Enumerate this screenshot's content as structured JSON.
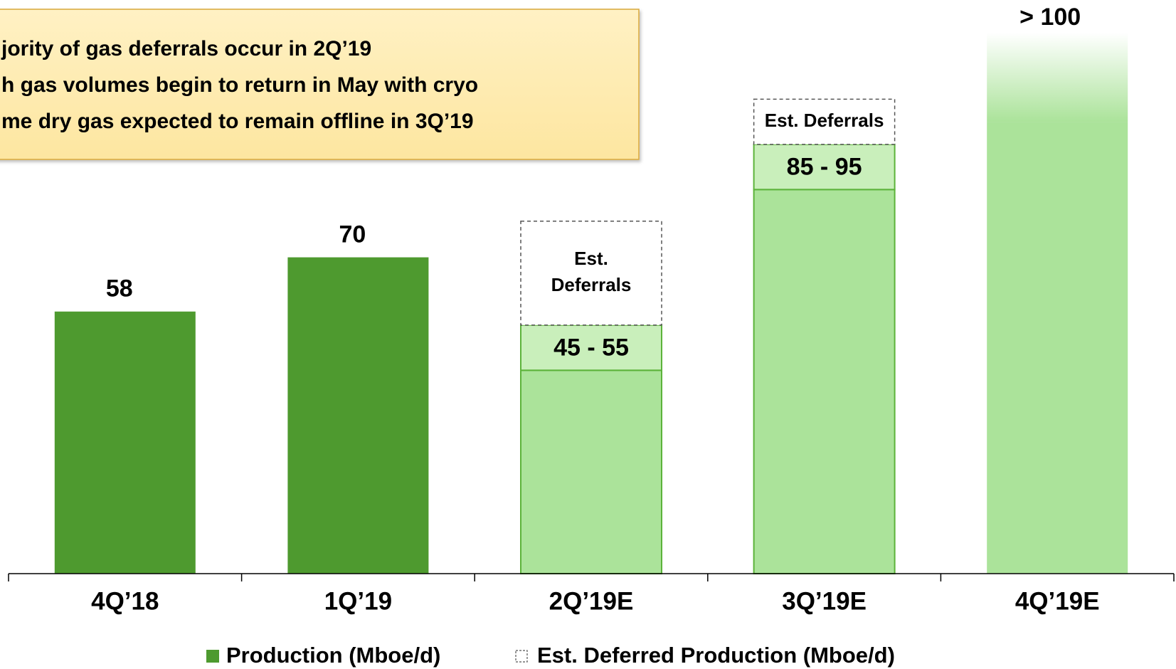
{
  "chart_data": {
    "type": "bar",
    "categories": [
      "4Q’18",
      "1Q’19",
      "2Q’19E",
      "3Q’19E",
      "4Q’19E"
    ],
    "series": [
      {
        "name": "Production (Mboe/d)",
        "color": "#4e9a2f",
        "colors": [
          "#4e9a2f",
          "#4e9a2f",
          "#abe39a",
          "#abe39a",
          "#abe39a"
        ],
        "values": [
          58,
          70,
          45,
          85,
          100
        ],
        "value_labels": [
          "58",
          "70",
          "45 - 55",
          "85 - 95",
          "> 100"
        ]
      },
      {
        "name": "Est. Deferred Production (Mboe/d)",
        "color": "#ffffff",
        "values": [
          null,
          null,
          23,
          10,
          null
        ]
      }
    ],
    "range_high": [
      null,
      null,
      55,
      95,
      null
    ],
    "range_color": "#c9efbb",
    "deferral_labels": [
      null,
      null,
      [
        "Est.",
        "Deferrals"
      ],
      [
        "Est. Deferrals"
      ],
      null
    ],
    "ylim": [
      0,
      126
    ],
    "annotations": [
      "jority of gas deferrals occur in 2Q’19",
      "h gas volumes begin to return in May with cryo",
      "me dry gas expected to remain offline in 3Q’19"
    ]
  }
}
